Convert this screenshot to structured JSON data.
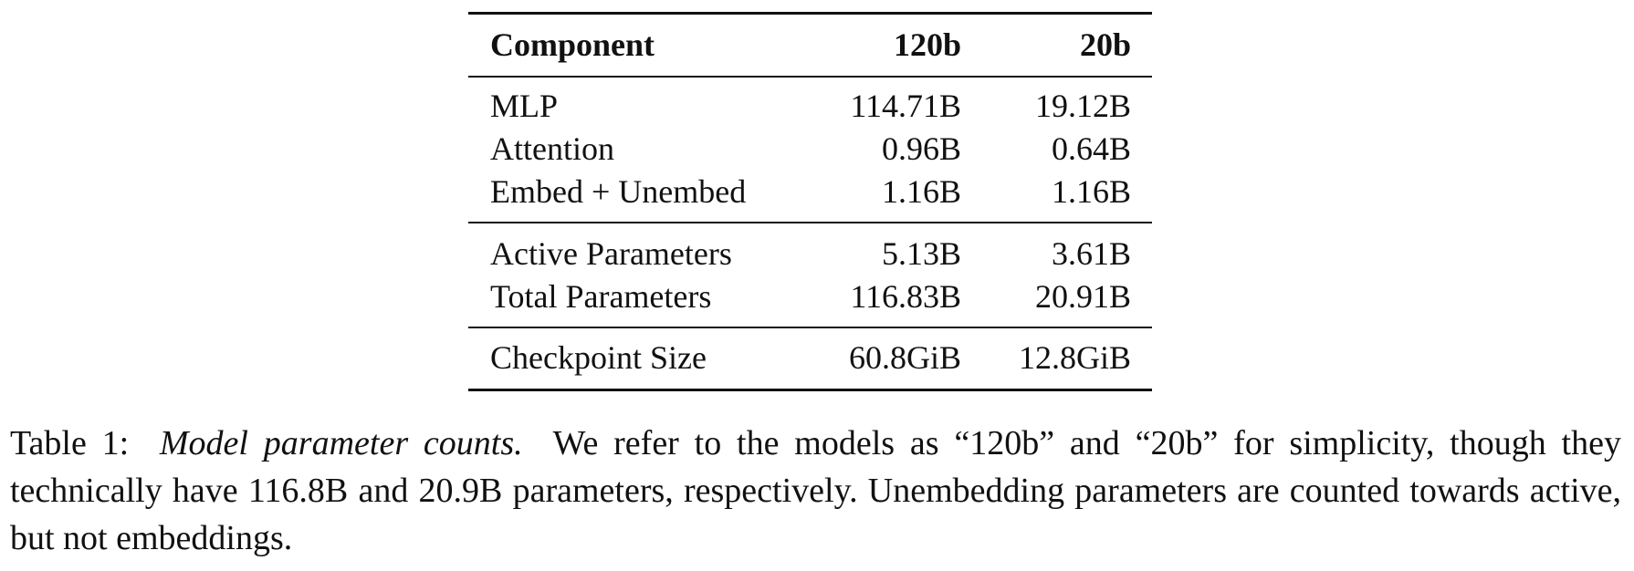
{
  "table": {
    "header": [
      "Component",
      "120b",
      "20b"
    ],
    "rows": [
      [
        "MLP",
        "114.71B",
        "19.12B"
      ],
      [
        "Attention",
        "0.96B",
        "0.64B"
      ],
      [
        "Embed + Unembed",
        "1.16B",
        "1.16B"
      ],
      [
        "Active Parameters",
        "5.13B",
        "3.61B"
      ],
      [
        "Total Parameters",
        "116.83B",
        "20.91B"
      ],
      [
        "Checkpoint Size",
        "60.8GiB",
        "12.8GiB"
      ]
    ]
  },
  "caption": {
    "label": "Table 1:",
    "title": "Model parameter counts.",
    "text": "We refer to the models as “120b” and “20b” for simplicity, though they technically have 116.8B and 20.9B parameters, respectively. Unembedding parameters are counted towards active, but not embeddings."
  }
}
